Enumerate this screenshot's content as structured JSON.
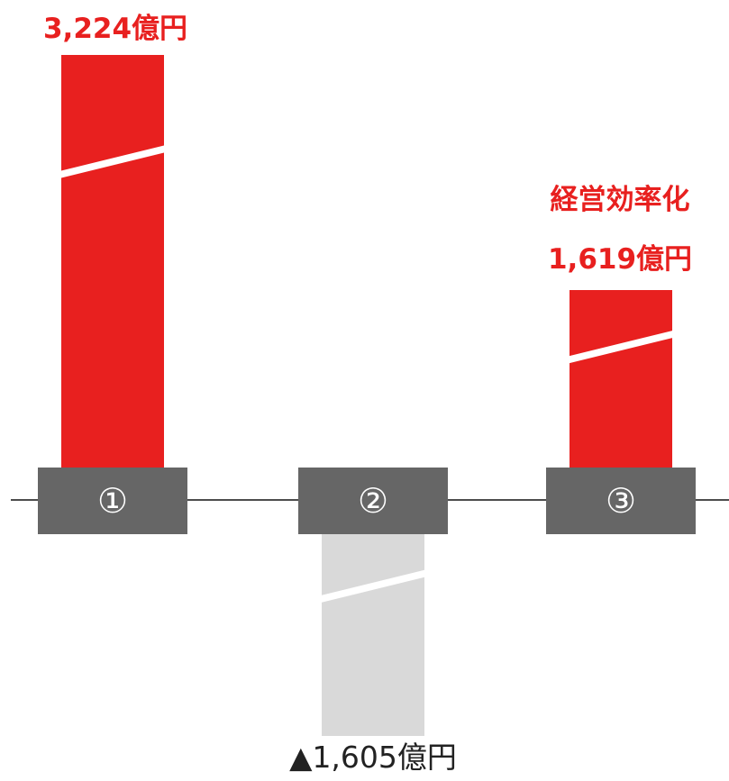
{
  "chart_data": {
    "type": "bar",
    "categories": [
      "①",
      "②",
      "③"
    ],
    "values": [
      3224,
      -1605,
      1619
    ],
    "value_labels": [
      "3,224億円",
      "▲1,605億円",
      "1,619億円"
    ],
    "extra_labels": [
      "",
      "",
      "経営効率化"
    ],
    "colors": [
      "#e8201f",
      "#d9d9d9",
      "#e8201f"
    ],
    "label_colors": [
      "#e8201f",
      "#222222",
      "#e8201f"
    ],
    "axis_break": true,
    "grid": false,
    "legend": "none",
    "title": "",
    "xlabel": "",
    "ylabel": ""
  }
}
